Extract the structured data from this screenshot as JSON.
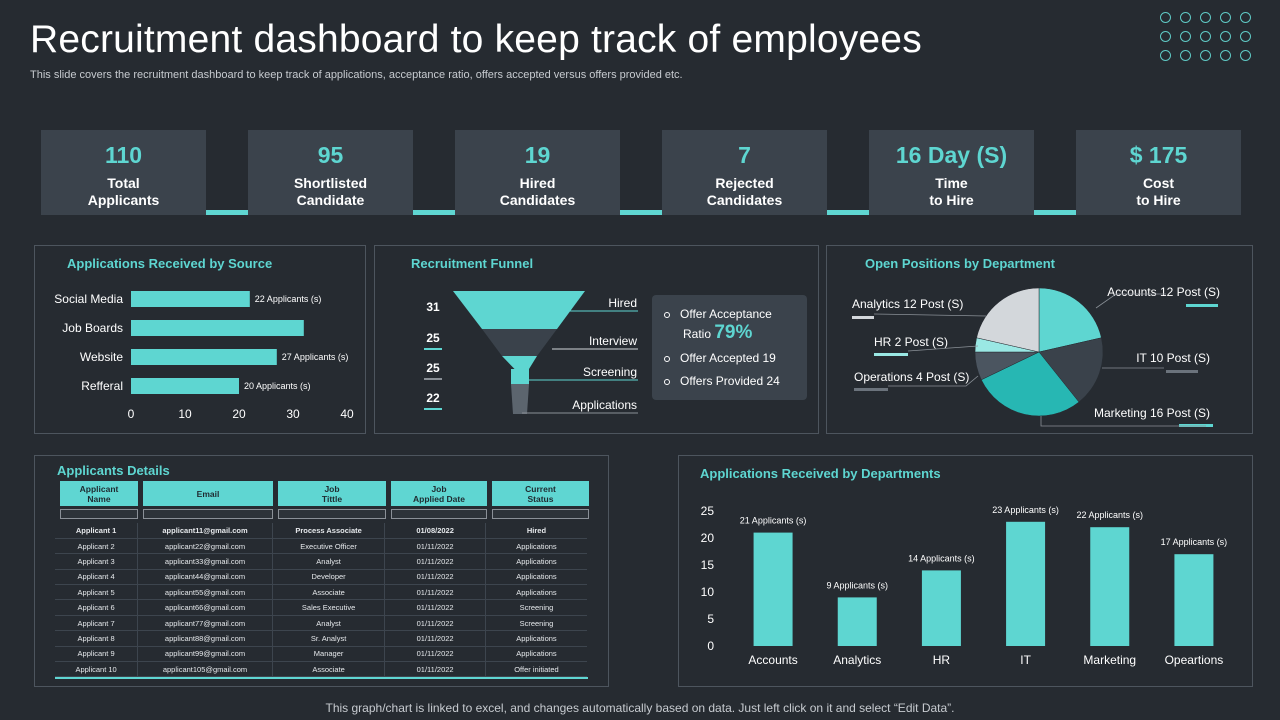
{
  "header": {
    "title": "Recruitment dashboard to keep track of employees",
    "subtitle": "This slide covers the recruitment dashboard to keep track of applications, acceptance ratio, offers accepted versus offers provided etc."
  },
  "kpis": [
    {
      "value": "110",
      "line1": "Total",
      "line2": "Applicants"
    },
    {
      "value": "95",
      "line1": "Shortlisted",
      "line2": "Candidate"
    },
    {
      "value": "19",
      "line1": "Hired",
      "line2": "Candidates"
    },
    {
      "value": "7",
      "line1": "Rejected",
      "line2": "Candidates"
    },
    {
      "value": "16 Day (S)",
      "line1": "Time",
      "line2": "to Hire"
    },
    {
      "value": "$ 175",
      "line1": "Cost",
      "line2": "to Hire"
    }
  ],
  "colors": {
    "accent": "#5ed6d1",
    "panel": "#3b434c",
    "background": "#262b31"
  },
  "chart_data": [
    {
      "type": "bar",
      "orientation": "horizontal",
      "title": "Applications Received by Source",
      "categories": [
        "Social Media",
        "Job Boards",
        "Website",
        "Refferal"
      ],
      "values": [
        22,
        32,
        27,
        20
      ],
      "data_labels": [
        "22 Applicants (s)",
        "",
        "27 Applicants (s)",
        "20 Applicants (s)"
      ],
      "xticks": [
        "0",
        "10",
        "20",
        "30",
        "40"
      ],
      "xlim": [
        0,
        40
      ]
    },
    {
      "type": "funnel",
      "title": "Recruitment Funnel",
      "stages": [
        "Hired",
        "Interview",
        "Screening",
        "Applications"
      ],
      "values": [
        "31",
        "25",
        "25",
        "22"
      ]
    },
    {
      "type": "pie",
      "title": "Open Positions by Department",
      "slices": [
        {
          "label": "Accounts 12 Post (S)",
          "value": 12,
          "color": "#5ed6d1"
        },
        {
          "label": "IT 10 Post (S)",
          "value": 10,
          "color": "#3a424b"
        },
        {
          "label": "Marketing 16 Post (S)",
          "value": 16,
          "color": "#27b7b3"
        },
        {
          "label": "Operations 4 Post (S)",
          "value": 4,
          "color": "#4b5560"
        },
        {
          "label": "HR 2 Post (S)",
          "value": 2,
          "color": "#9ae8e4"
        },
        {
          "label": "Analytics 12 Post (S)",
          "value": 12,
          "color": "#d3d7db"
        }
      ]
    },
    {
      "type": "bar",
      "title": "Applications Received by Departments",
      "categories": [
        "Accounts",
        "Analytics",
        "HR",
        "IT",
        "Marketing",
        "Opeartions"
      ],
      "values": [
        21,
        9,
        14,
        23,
        22,
        17
      ],
      "data_labels": [
        "21 Applicants (s)",
        "9 Applicants (s)",
        "14 Applicants (s)",
        "23 Applicants (s)",
        "22 Applicants (s)",
        "17 Applicants (s)"
      ],
      "yticks": [
        "0",
        "5",
        "10",
        "15",
        "20",
        "25"
      ],
      "ylim": [
        0,
        25
      ]
    }
  ],
  "funnel_stats": {
    "acceptance_label_1": "Offer Acceptance",
    "acceptance_label_2": "Ratio",
    "acceptance_value": "79%",
    "accepted": "Offer Accepted 19",
    "provided": "Offers Provided 24"
  },
  "applicants": {
    "title": "Applicants Details",
    "columns": [
      [
        "Applicant",
        "Name"
      ],
      [
        "Email",
        ""
      ],
      [
        "Job",
        "Tittle"
      ],
      [
        "Job",
        "Applied Date"
      ],
      [
        "Current",
        "Status"
      ]
    ],
    "rows": [
      [
        "Applicant 1",
        "applicant11@gmail.com",
        "Process Associate",
        "01/08/2022",
        "Hired"
      ],
      [
        "Applicant 2",
        "applicant22@gmail.com",
        "Executive Officer",
        "01/11/2022",
        "Applications"
      ],
      [
        "Applicant 3",
        "applicant33@gmail.com",
        "Analyst",
        "01/11/2022",
        "Applications"
      ],
      [
        "Applicant 4",
        "applicant44@gmail.com",
        "Developer",
        "01/11/2022",
        "Applications"
      ],
      [
        "Applicant 5",
        "applicant55@gmail.com",
        "Associate",
        "01/11/2022",
        "Applications"
      ],
      [
        "Applicant 6",
        "applicant66@gmail.com",
        "Sales Executive",
        "01/11/2022",
        "Screening"
      ],
      [
        "Applicant 7",
        "applicant77@gmail.com",
        "Analyst",
        "01/11/2022",
        "Screening"
      ],
      [
        "Applicant 8",
        "applicant88@gmail.com",
        "Sr. Analyst",
        "01/11/2022",
        "Applications"
      ],
      [
        "Applicant 9",
        "applicant99@gmail.com",
        "Manager",
        "01/11/2022",
        "Applications"
      ],
      [
        "Applicant 10",
        "applicant105@gmail.com",
        "Associate",
        "01/11/2022",
        "Offer initiated"
      ]
    ]
  },
  "footer": "This graph/chart is linked to excel, and changes automatically based on data. Just left click on it and select “Edit Data”."
}
